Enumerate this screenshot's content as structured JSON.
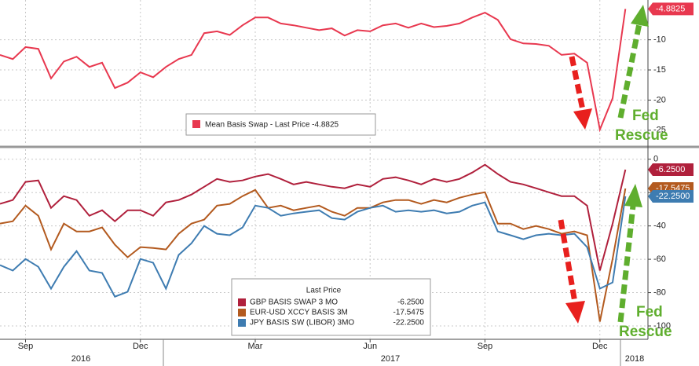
{
  "chart_data": [
    {
      "type": "line",
      "ylim": [
        -27.5,
        -3.4
      ],
      "yticks": [
        -10,
        -15,
        -20,
        -25
      ],
      "grid": true,
      "annotation": [
        "Fed",
        "Rescue"
      ],
      "series": [
        {
          "name": "Mean Basis Swap - Last Price -4.8825",
          "color": "#e8384f",
          "values": [
            -12.5,
            -13.2,
            -11.2,
            -11.5,
            -16.4,
            -13.6,
            -12.8,
            -14.5,
            -13.8,
            -18.0,
            -17.1,
            -15.4,
            -16.2,
            -14.5,
            -13.2,
            -12.5,
            -8.9,
            -8.6,
            -9.2,
            -7.6,
            -6.3,
            -6.3,
            -7.3,
            -7.6,
            -8.0,
            -8.4,
            -8.1,
            -9.3,
            -8.4,
            -8.6,
            -7.6,
            -7.3,
            -8.0,
            -7.3,
            -7.9,
            -7.7,
            -7.3,
            -6.3,
            -5.5,
            -6.7,
            -9.9,
            -10.6,
            -10.7,
            -11.0,
            -12.5,
            -12.3,
            -13.8,
            -24.9,
            -19.7,
            -4.8825
          ],
          "value_labels": [
            null,
            null,
            null,
            null,
            null,
            null,
            null,
            null,
            null,
            null,
            null,
            null,
            null,
            null,
            null,
            null,
            null,
            null,
            null,
            null,
            null,
            null,
            null,
            null,
            null,
            null,
            null,
            null,
            null,
            null,
            null,
            null,
            null,
            null,
            null,
            null,
            null,
            null,
            null,
            null,
            null,
            null,
            null,
            null,
            null,
            null,
            null,
            null,
            null,
            "-4.8825"
          ]
        }
      ]
    },
    {
      "type": "line",
      "ylim": [
        -108,
        6
      ],
      "yticks": [
        0,
        -20,
        -40,
        -60,
        -80,
        -100
      ],
      "grid": true,
      "categories": [
        null,
        null,
        "Sep",
        null,
        null,
        null,
        null,
        null,
        null,
        null,
        null,
        "Dec",
        null,
        null,
        null,
        null,
        null,
        null,
        null,
        null,
        "Mar",
        null,
        null,
        null,
        null,
        null,
        null,
        null,
        null,
        "Jun",
        null,
        null,
        null,
        null,
        null,
        null,
        null,
        null,
        "Sep",
        null,
        null,
        null,
        null,
        null,
        null,
        null,
        null,
        "Dec",
        null,
        null
      ],
      "x_groups": [
        "2016",
        "2017",
        "2018"
      ],
      "legend_title": "Last Price",
      "annotation": [
        "Fed",
        "Rescue"
      ],
      "series": [
        {
          "name": "GBP BASIS SWAP 3 MO",
          "color": "#b0203c",
          "values": [
            -26.8,
            -24.5,
            -13.6,
            -12.7,
            -29.2,
            -22.1,
            -24.5,
            -33.9,
            -30.6,
            -37.2,
            -30.6,
            -30.6,
            -33.9,
            -25.9,
            -24.5,
            -21.2,
            -16.5,
            -11.8,
            -13.6,
            -12.7,
            -10.4,
            -8.9,
            -11.8,
            -15.1,
            -13.6,
            -15.1,
            -16.5,
            -17.4,
            -15.1,
            -16.5,
            -11.8,
            -10.8,
            -12.7,
            -15.1,
            -11.8,
            -13.6,
            -11.8,
            -8.0,
            -3.3,
            -8.9,
            -13.6,
            -15.1,
            -17.4,
            -19.8,
            -22.1,
            -22.1,
            -27.8,
            -66.8,
            -38.6,
            -6.25
          ],
          "value_labels": [
            null,
            null,
            null,
            null,
            null,
            null,
            null,
            null,
            null,
            null,
            null,
            null,
            null,
            null,
            null,
            null,
            null,
            null,
            null,
            null,
            null,
            null,
            null,
            null,
            null,
            null,
            null,
            null,
            null,
            null,
            null,
            null,
            null,
            null,
            null,
            null,
            null,
            null,
            null,
            null,
            null,
            null,
            null,
            null,
            null,
            null,
            null,
            null,
            null,
            "-6.2500"
          ]
        },
        {
          "name": "EUR-USD XCCY BASIS 3M",
          "color": "#b35a1f",
          "values": [
            -38.6,
            -37.2,
            -27.8,
            -33.9,
            -54.1,
            -38.6,
            -43.3,
            -43.3,
            -40.9,
            -51.3,
            -58.8,
            -52.7,
            -53.2,
            -54.1,
            -44.7,
            -38.6,
            -36.2,
            -27.8,
            -26.8,
            -22.1,
            -18.4,
            -29.2,
            -27.8,
            -30.6,
            -29.2,
            -27.8,
            -31.5,
            -33.9,
            -29.2,
            -29.2,
            -25.9,
            -24.5,
            -24.5,
            -26.8,
            -24.5,
            -25.9,
            -23.1,
            -21.2,
            -19.8,
            -38.6,
            -38.6,
            -41.9,
            -40.0,
            -41.9,
            -44.7,
            -43.3,
            -45.6,
            -97.4,
            -59.8,
            -17.5475
          ],
          "value_labels": [
            null,
            null,
            null,
            null,
            null,
            null,
            null,
            null,
            null,
            null,
            null,
            null,
            null,
            null,
            null,
            null,
            null,
            null,
            null,
            null,
            null,
            null,
            null,
            null,
            null,
            null,
            null,
            null,
            null,
            null,
            null,
            null,
            null,
            null,
            null,
            null,
            null,
            null,
            null,
            null,
            null,
            null,
            null,
            null,
            null,
            null,
            null,
            null,
            null,
            "-17.5475"
          ]
        },
        {
          "name": "JPY BASIS SW (LIBOR) 3MO",
          "color": "#3e7cb1",
          "values": [
            -63.5,
            -66.8,
            -59.8,
            -64.5,
            -77.6,
            -64.5,
            -55.1,
            -66.8,
            -68.2,
            -82.4,
            -79.5,
            -59.8,
            -62.1,
            -77.6,
            -57.4,
            -50.4,
            -40.0,
            -44.7,
            -45.6,
            -40.9,
            -27.8,
            -29.2,
            -33.9,
            -32.5,
            -31.5,
            -30.6,
            -35.3,
            -36.2,
            -31.5,
            -29.2,
            -27.8,
            -31.5,
            -30.6,
            -31.5,
            -30.6,
            -32.5,
            -31.5,
            -27.8,
            -25.9,
            -43.3,
            -45.6,
            -48.0,
            -45.6,
            -44.7,
            -45.6,
            -44.7,
            -52.7,
            -77.6,
            -73.9,
            -22.25
          ],
          "value_labels": [
            null,
            null,
            null,
            null,
            null,
            null,
            null,
            null,
            null,
            null,
            null,
            null,
            null,
            null,
            null,
            null,
            null,
            null,
            null,
            null,
            null,
            null,
            null,
            null,
            null,
            null,
            null,
            null,
            null,
            null,
            null,
            null,
            null,
            null,
            null,
            null,
            null,
            null,
            null,
            null,
            null,
            null,
            null,
            null,
            null,
            null,
            null,
            null,
            null,
            "-22.2500"
          ]
        }
      ]
    }
  ]
}
